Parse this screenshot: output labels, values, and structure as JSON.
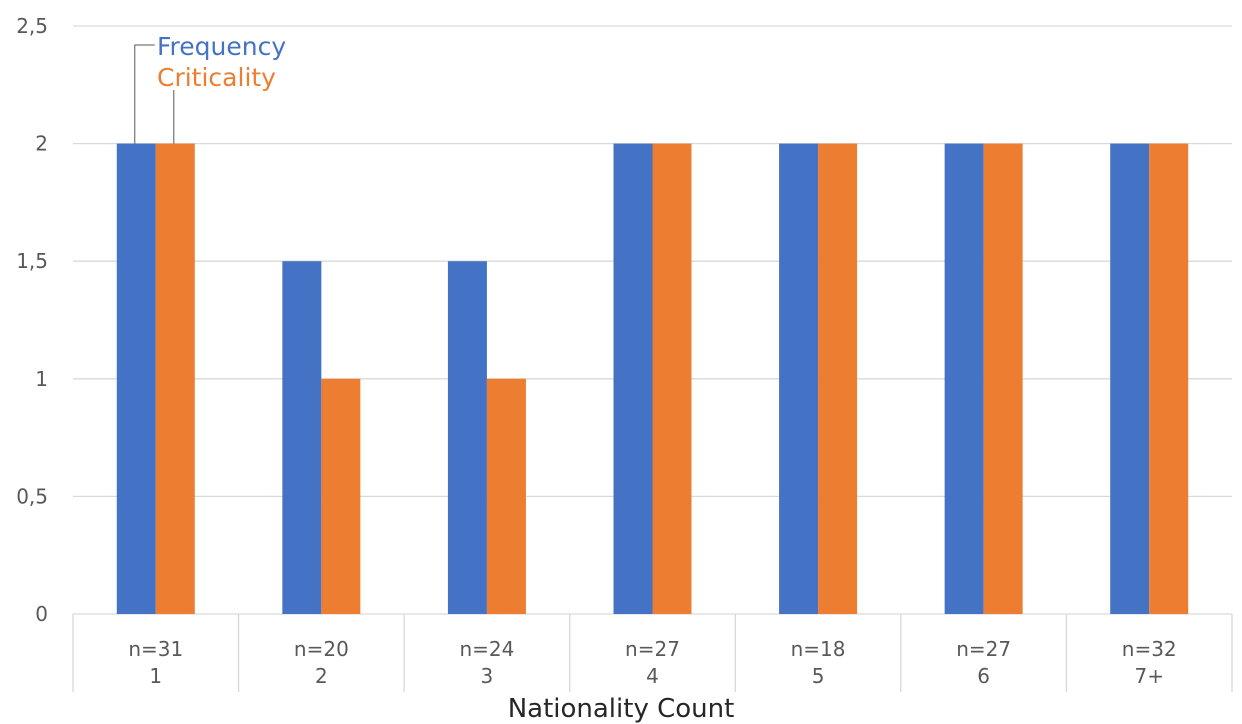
{
  "chart_data": {
    "type": "bar",
    "xlabel": "Nationality Count",
    "ylabel": "",
    "ylim": [
      0,
      2.5
    ],
    "yticks": [
      "0",
      "0,5",
      "1",
      "1,5",
      "2",
      "2,5"
    ],
    "grid": true,
    "legend_position": "top-left",
    "categories": [
      {
        "n": "n=31",
        "label": "1"
      },
      {
        "n": "n=20",
        "label": "2"
      },
      {
        "n": "n=24",
        "label": "3"
      },
      {
        "n": "n=27",
        "label": "4"
      },
      {
        "n": "n=18",
        "label": "5"
      },
      {
        "n": "n=27",
        "label": "6"
      },
      {
        "n": "n=32",
        "label": "7+"
      }
    ],
    "series": [
      {
        "name": "Frequency",
        "color": "#4472C4",
        "values": [
          2,
          1.5,
          1.5,
          2,
          2,
          2,
          2
        ]
      },
      {
        "name": "Criticality",
        "color": "#ED7D31",
        "values": [
          2,
          1,
          1,
          2,
          2,
          2,
          2
        ]
      }
    ]
  }
}
